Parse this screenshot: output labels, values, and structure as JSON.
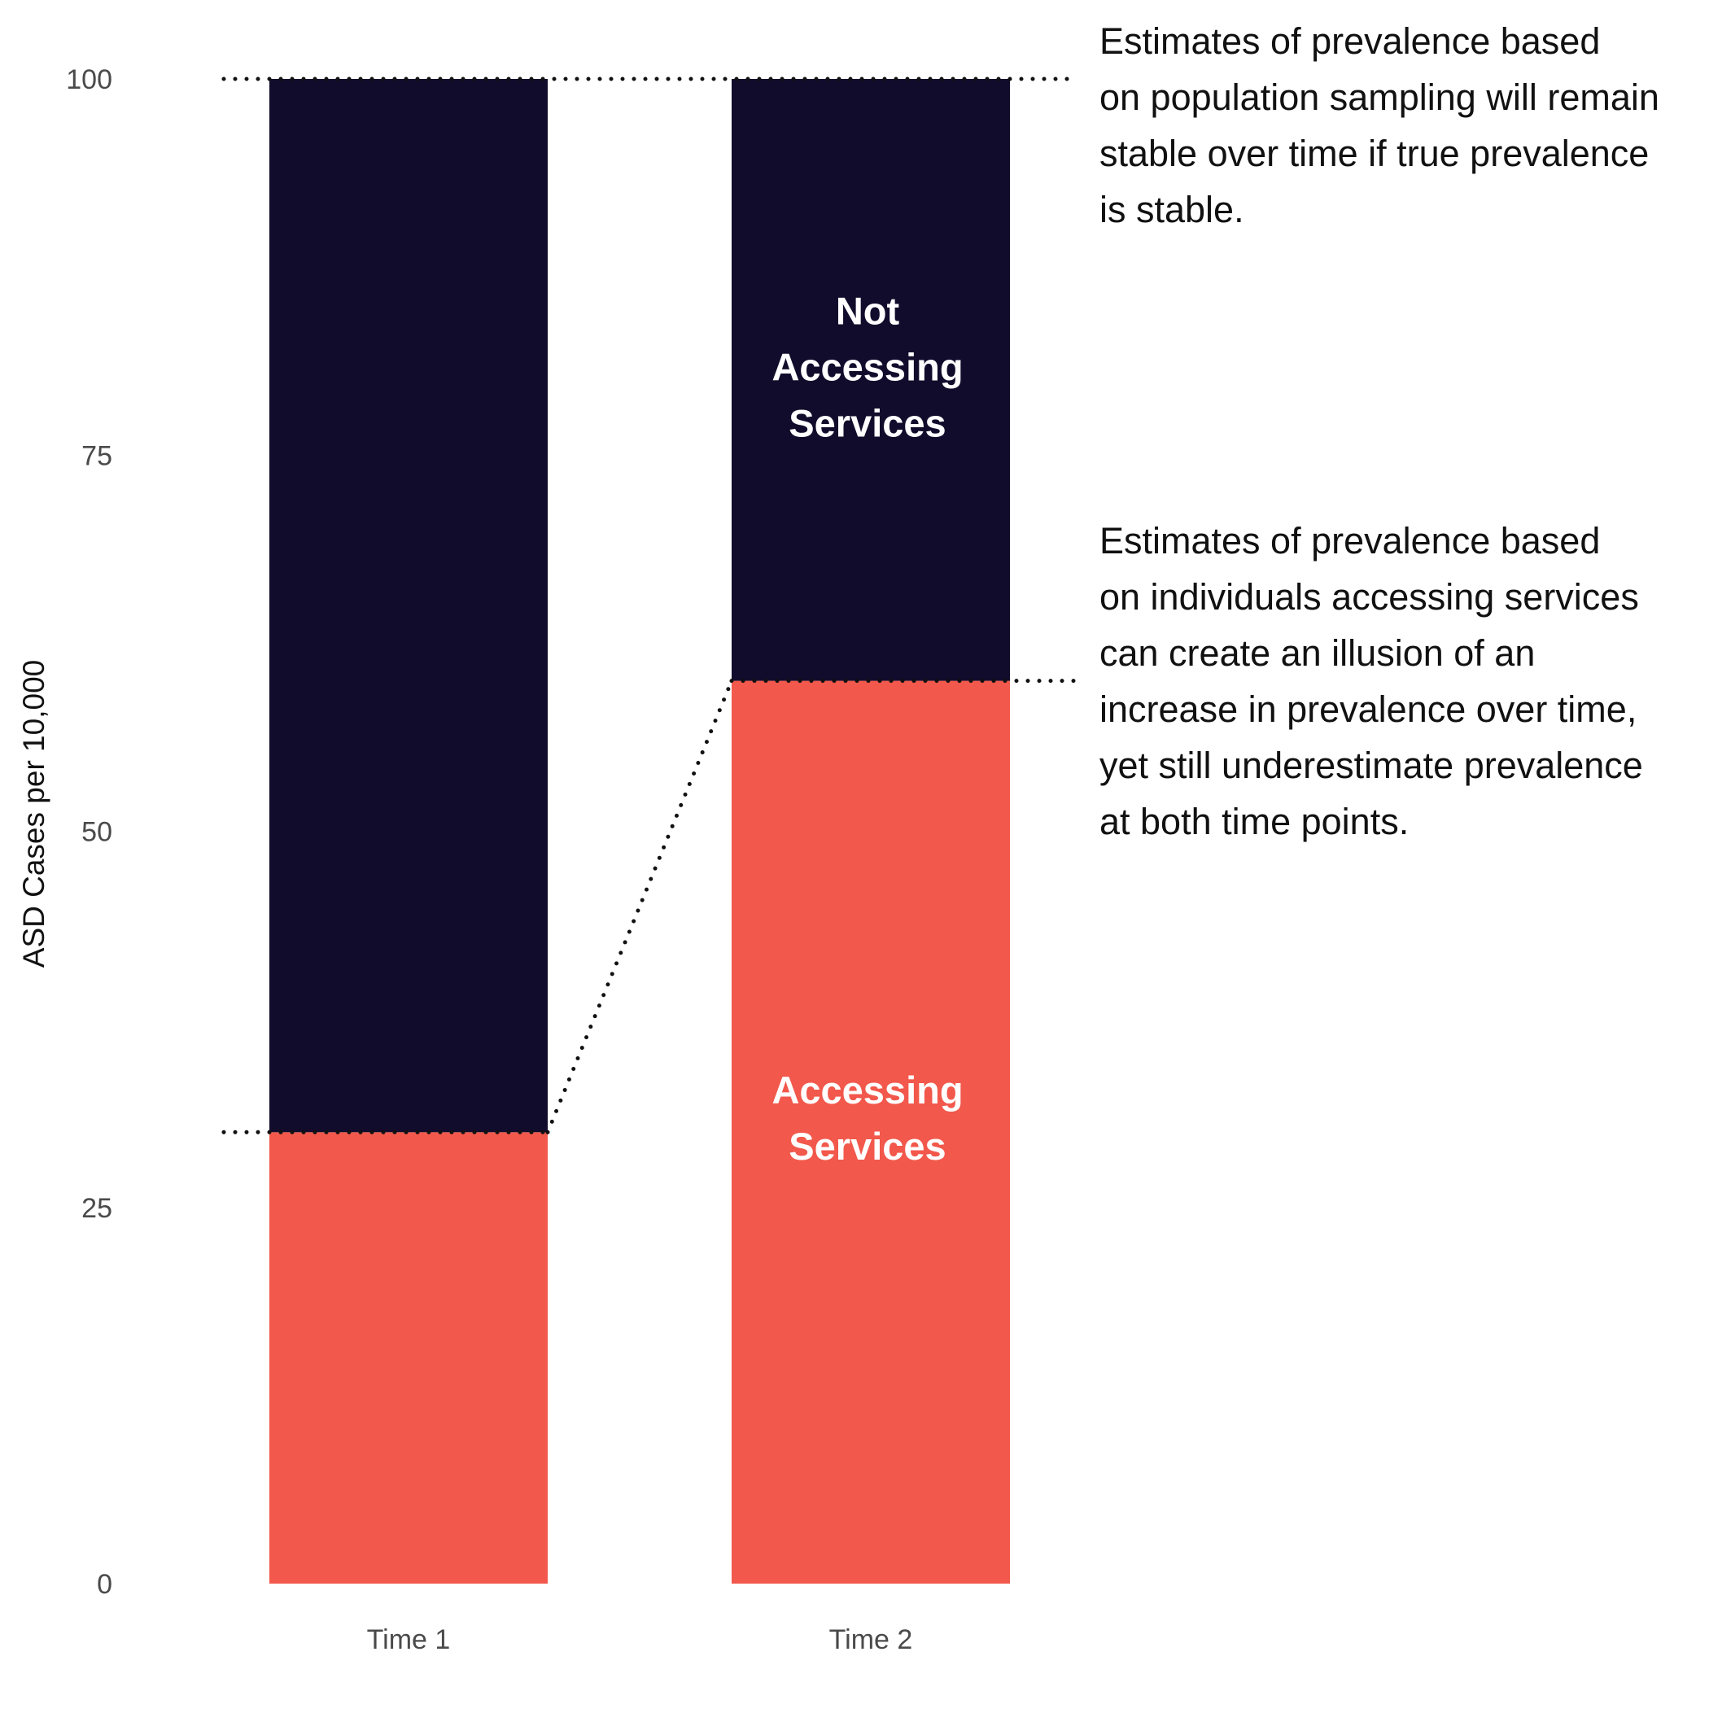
{
  "chart_data": {
    "type": "bar",
    "stacked": true,
    "categories": [
      "Time 1",
      "Time 2"
    ],
    "series": [
      {
        "name": "Accessing Services",
        "color": "#F2584B",
        "values": [
          30,
          60
        ]
      },
      {
        "name": "Not Accessing Services",
        "color": "#120C2C",
        "values": [
          70,
          40
        ]
      }
    ],
    "segment_labels": {
      "accessing": [
        "Accessing",
        "Services"
      ],
      "not_accessing": [
        "Not",
        "Accessing",
        "Services"
      ]
    },
    "ylabel": "ASD Cases per 10,000",
    "ylim": [
      0,
      100
    ],
    "yticks": [
      "0",
      "25",
      "50",
      "75",
      "100"
    ],
    "grid": false,
    "annotations": {
      "population_sampling": [
        "Estimates of prevalence based",
        "on population sampling will remain",
        "stable over time if true prevalence",
        "is stable."
      ],
      "accessing_services": [
        "Estimates of prevalence based",
        "on individuals accessing services",
        "can create an illusion of an",
        "increase in prevalence over time,",
        "yet still underestimate prevalence",
        "at both time points."
      ]
    }
  }
}
